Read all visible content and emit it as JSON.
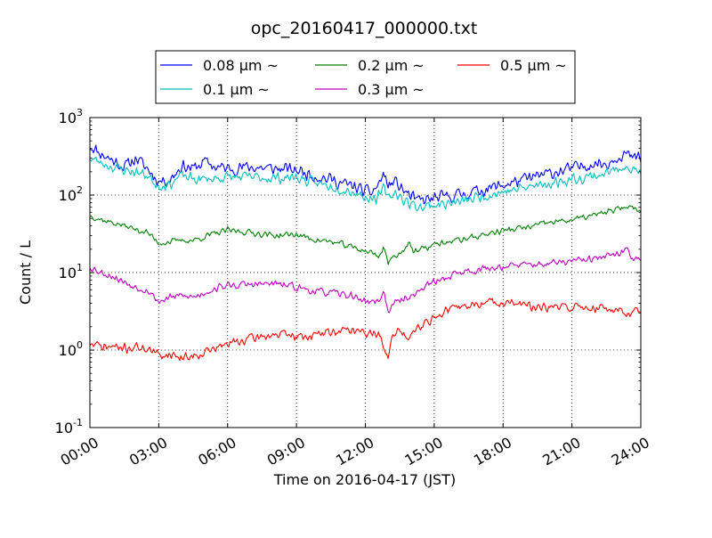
{
  "chart_data": {
    "type": "line",
    "title": "opc_20160417_000000.txt",
    "xlabel": "Time on 2016-04-17 (JST)",
    "ylabel": "Count / L",
    "x_unit": "hours",
    "xlim": [
      0,
      24
    ],
    "ylim": [
      0.1,
      1000
    ],
    "yscale": "log",
    "grid": true,
    "legend_position": "top-center",
    "x_ticks": [
      0,
      3,
      6,
      9,
      12,
      15,
      18,
      21,
      24
    ],
    "x_tick_labels": [
      "00:00",
      "03:00",
      "06:00",
      "09:00",
      "12:00",
      "15:00",
      "18:00",
      "21:00",
      "24:00"
    ],
    "y_ticks": [
      {
        "value": 0.1,
        "base": "10",
        "exp": "-1"
      },
      {
        "value": 1,
        "base": "10",
        "exp": "0"
      },
      {
        "value": 10,
        "base": "10",
        "exp": "1"
      },
      {
        "value": 100,
        "base": "10",
        "exp": "2"
      },
      {
        "value": 1000,
        "base": "10",
        "exp": "3"
      }
    ],
    "series": [
      {
        "name": "0.08 μm ~",
        "color": "#0000ff",
        "noise": 0.2,
        "seed": 11,
        "points": [
          [
            0,
            440
          ],
          [
            0.5,
            340
          ],
          [
            1,
            280
          ],
          [
            1.5,
            230
          ],
          [
            2,
            300
          ],
          [
            2.5,
            220
          ],
          [
            3,
            150
          ],
          [
            3.5,
            160
          ],
          [
            4,
            240
          ],
          [
            4.5,
            220
          ],
          [
            5,
            270
          ],
          [
            5.5,
            230
          ],
          [
            6,
            220
          ],
          [
            7,
            230
          ],
          [
            8,
            220
          ],
          [
            9,
            210
          ],
          [
            9.5,
            190
          ],
          [
            10,
            170
          ],
          [
            10.5,
            160
          ],
          [
            11,
            140
          ],
          [
            11.5,
            130
          ],
          [
            12,
            110
          ],
          [
            12.3,
            110
          ],
          [
            12.6,
            140
          ],
          [
            12.8,
            190
          ],
          [
            13,
            130
          ],
          [
            13.3,
            150
          ],
          [
            13.6,
            120
          ],
          [
            13.9,
            100
          ],
          [
            14.2,
            85
          ],
          [
            14.5,
            85
          ],
          [
            15,
            90
          ],
          [
            16,
            100
          ],
          [
            17,
            115
          ],
          [
            18,
            135
          ],
          [
            19,
            160
          ],
          [
            20,
            190
          ],
          [
            21,
            220
          ],
          [
            22,
            260
          ],
          [
            22.5,
            250
          ],
          [
            23,
            320
          ],
          [
            23.3,
            350
          ],
          [
            23.6,
            300
          ],
          [
            24,
            300
          ]
        ]
      },
      {
        "name": "0.1 μm ~",
        "color": "#00bfbf",
        "noise": 0.17,
        "seed": 23,
        "points": [
          [
            0,
            300
          ],
          [
            0.5,
            260
          ],
          [
            1,
            230
          ],
          [
            1.5,
            210
          ],
          [
            2,
            200
          ],
          [
            2.5,
            180
          ],
          [
            3,
            130
          ],
          [
            3.5,
            140
          ],
          [
            4,
            180
          ],
          [
            4.5,
            160
          ],
          [
            5,
            160
          ],
          [
            6,
            170
          ],
          [
            7,
            170
          ],
          [
            8,
            165
          ],
          [
            9,
            170
          ],
          [
            9.5,
            150
          ],
          [
            10,
            140
          ],
          [
            10.5,
            130
          ],
          [
            11,
            120
          ],
          [
            11.5,
            110
          ],
          [
            12,
            95
          ],
          [
            12.5,
            90
          ],
          [
            12.8,
            120
          ],
          [
            13,
            90
          ],
          [
            13.3,
            110
          ],
          [
            13.6,
            90
          ],
          [
            14,
            75
          ],
          [
            14.5,
            70
          ],
          [
            15,
            75
          ],
          [
            16,
            80
          ],
          [
            17,
            95
          ],
          [
            18,
            110
          ],
          [
            19,
            125
          ],
          [
            20,
            140
          ],
          [
            21,
            160
          ],
          [
            22,
            180
          ],
          [
            22.5,
            190
          ],
          [
            23,
            220
          ],
          [
            23.3,
            250
          ],
          [
            23.6,
            210
          ],
          [
            24,
            200
          ]
        ]
      },
      {
        "name": "0.2 μm ~",
        "color": "#008000",
        "noise": 0.1,
        "seed": 37,
        "points": [
          [
            0,
            55
          ],
          [
            0.5,
            48
          ],
          [
            1,
            44
          ],
          [
            1.5,
            40
          ],
          [
            2,
            36
          ],
          [
            2.5,
            33
          ],
          [
            3,
            24
          ],
          [
            3.5,
            25
          ],
          [
            4,
            26
          ],
          [
            4.5,
            26
          ],
          [
            5,
            29
          ],
          [
            5.5,
            32
          ],
          [
            6,
            35
          ],
          [
            7,
            33
          ],
          [
            8,
            30
          ],
          [
            9,
            31
          ],
          [
            9.5,
            28
          ],
          [
            10,
            26
          ],
          [
            10.5,
            25
          ],
          [
            11,
            23
          ],
          [
            11.5,
            21
          ],
          [
            12,
            19
          ],
          [
            12.3,
            18
          ],
          [
            12.6,
            16
          ],
          [
            12.8,
            22
          ],
          [
            13,
            13
          ],
          [
            13.3,
            17
          ],
          [
            13.6,
            18
          ],
          [
            13.9,
            26
          ],
          [
            14.1,
            18
          ],
          [
            14.5,
            20
          ],
          [
            15,
            23
          ],
          [
            16,
            26
          ],
          [
            17,
            30
          ],
          [
            18,
            35
          ],
          [
            19,
            38
          ],
          [
            20,
            44
          ],
          [
            21,
            48
          ],
          [
            22,
            55
          ],
          [
            22.5,
            60
          ],
          [
            23,
            65
          ],
          [
            23.4,
            72
          ],
          [
            24,
            65
          ]
        ]
      },
      {
        "name": "0.3 μm ~",
        "color": "#bf00bf",
        "noise": 0.12,
        "seed": 53,
        "points": [
          [
            0,
            12
          ],
          [
            0.5,
            10
          ],
          [
            1,
            9
          ],
          [
            1.5,
            7.5
          ],
          [
            2,
            6.5
          ],
          [
            2.5,
            6
          ],
          [
            3,
            4.2
          ],
          [
            3.5,
            4.8
          ],
          [
            4,
            5
          ],
          [
            4.5,
            4.8
          ],
          [
            5,
            5.5
          ],
          [
            5.5,
            6.3
          ],
          [
            6,
            6.8
          ],
          [
            7,
            7
          ],
          [
            8,
            7.2
          ],
          [
            9,
            6.5
          ],
          [
            9.5,
            6
          ],
          [
            10,
            5.6
          ],
          [
            10.5,
            5.5
          ],
          [
            11,
            5.2
          ],
          [
            11.5,
            5
          ],
          [
            12,
            4.2
          ],
          [
            12.5,
            4.2
          ],
          [
            12.8,
            5.5
          ],
          [
            13,
            3.2
          ],
          [
            13.3,
            4
          ],
          [
            13.6,
            4.5
          ],
          [
            13.9,
            5
          ],
          [
            14.2,
            5.2
          ],
          [
            14.5,
            6.5
          ],
          [
            15,
            7.5
          ],
          [
            15.5,
            8.5
          ],
          [
            16,
            10
          ],
          [
            17,
            11
          ],
          [
            18,
            12
          ],
          [
            19,
            12.5
          ],
          [
            20,
            13
          ],
          [
            21,
            14
          ],
          [
            22,
            15
          ],
          [
            23,
            17
          ],
          [
            23.4,
            20
          ],
          [
            23.7,
            15
          ],
          [
            24,
            16
          ]
        ]
      },
      {
        "name": "0.5 μm ~",
        "color": "#ff0000",
        "noise": 0.15,
        "seed": 71,
        "points": [
          [
            0,
            1.2
          ],
          [
            0.5,
            1.1
          ],
          [
            1,
            1.1
          ],
          [
            1.5,
            1.05
          ],
          [
            2,
            1.1
          ],
          [
            2.5,
            1.05
          ],
          [
            3,
            0.85
          ],
          [
            3.5,
            0.9
          ],
          [
            4,
            0.8
          ],
          [
            4.5,
            0.85
          ],
          [
            5,
            0.95
          ],
          [
            5.5,
            1.05
          ],
          [
            6,
            1.2
          ],
          [
            7,
            1.4
          ],
          [
            8,
            1.6
          ],
          [
            9,
            1.5
          ],
          [
            9.5,
            1.5
          ],
          [
            10,
            1.6
          ],
          [
            10.5,
            1.7
          ],
          [
            11,
            1.8
          ],
          [
            11.5,
            1.85
          ],
          [
            12,
            1.6
          ],
          [
            12.3,
            1.7
          ],
          [
            12.6,
            1.5
          ],
          [
            12.8,
            1.2
          ],
          [
            13,
            0.8
          ],
          [
            13.2,
            1.5
          ],
          [
            13.4,
            1.8
          ],
          [
            13.8,
            1.5
          ],
          [
            14.2,
            1.9
          ],
          [
            14.6,
            2.3
          ],
          [
            15,
            2.6
          ],
          [
            15.5,
            3.2
          ],
          [
            16,
            3.5
          ],
          [
            17,
            4
          ],
          [
            18,
            4.2
          ],
          [
            19,
            3.8
          ],
          [
            19.5,
            3.4
          ],
          [
            20,
            3.5
          ],
          [
            21,
            3.6
          ],
          [
            22,
            3.5
          ],
          [
            23,
            3.3
          ],
          [
            23.5,
            3.1
          ],
          [
            24,
            3
          ]
        ]
      }
    ]
  }
}
